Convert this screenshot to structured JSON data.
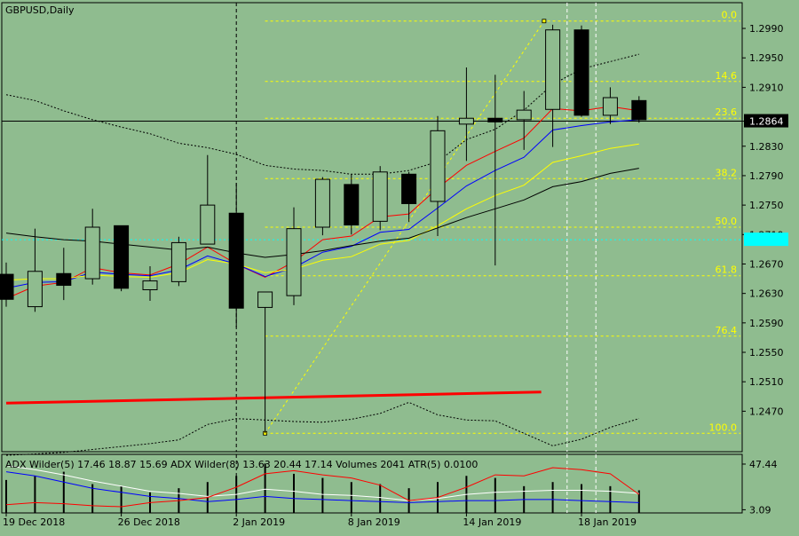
{
  "chart_data": {
    "type": "candlestick",
    "symbol_label": "GBPUSD,Daily",
    "colors": {
      "background": "#8fbc8f",
      "bull_candle": "#8fbc8f",
      "bear_candle": "#000000",
      "ma_red": "#ff0000",
      "ma_blue": "#0000ff",
      "ma_yellow": "#ffff00",
      "ma_black": "#000000",
      "fib_levels": "#ffff00",
      "cyan_label": "#00ffff",
      "adx_main": "#0000ff",
      "adx_plus": "#ffffff",
      "adx_minus": "#ff0000"
    },
    "ylim": [
      1.2415,
      1.3025
    ],
    "y_ticks": [
      "1.2990",
      "1.2950",
      "1.2910",
      "1.2864",
      "1.2830",
      "1.2790",
      "1.2750",
      "1.2710",
      "1.2670",
      "1.2630",
      "1.2590",
      "1.2550",
      "1.2510",
      "1.2470"
    ],
    "current_price": 1.2864,
    "current_price_label": "1.2864",
    "cyan_level": 1.2703,
    "x_labels": [
      {
        "index": 0,
        "label": "19 Dec 2018"
      },
      {
        "index": 4,
        "label": "26 Dec 2018"
      },
      {
        "index": 8,
        "label": "2 Jan 2019"
      },
      {
        "index": 12,
        "label": "8 Jan 2019"
      },
      {
        "index": 16,
        "label": "14 Jan 2019"
      },
      {
        "index": 20,
        "label": "18 Jan 2019"
      }
    ],
    "vlines": [
      {
        "index": 8,
        "style": "dash"
      },
      {
        "index": 19.5,
        "style": "dash-white"
      },
      {
        "index": 20.5,
        "style": "dash-white"
      }
    ],
    "candles": [
      {
        "o": 1.2656,
        "h": 1.2672,
        "l": 1.2612,
        "c": 1.2622
      },
      {
        "o": 1.2612,
        "h": 1.2718,
        "l": 1.2605,
        "c": 1.266
      },
      {
        "o": 1.2657,
        "h": 1.2692,
        "l": 1.2621,
        "c": 1.2641
      },
      {
        "o": 1.265,
        "h": 1.2745,
        "l": 1.2642,
        "c": 1.272
      },
      {
        "o": 1.2722,
        "h": 1.2722,
        "l": 1.2633,
        "c": 1.2637
      },
      {
        "o": 1.2635,
        "h": 1.2667,
        "l": 1.262,
        "c": 1.2647
      },
      {
        "o": 1.2646,
        "h": 1.2707,
        "l": 1.264,
        "c": 1.2699
      },
      {
        "o": 1.2697,
        "h": 1.2818,
        "l": 1.2697,
        "c": 1.275
      },
      {
        "o": 1.2739,
        "h": 1.278,
        "l": 1.2584,
        "c": 1.261
      },
      {
        "o": 1.2611,
        "h": 1.2632,
        "l": 1.244,
        "c": 1.2632
      },
      {
        "o": 1.2627,
        "h": 1.2747,
        "l": 1.2614,
        "c": 1.2718
      },
      {
        "o": 1.272,
        "h": 1.2788,
        "l": 1.2709,
        "c": 1.2785
      },
      {
        "o": 1.2778,
        "h": 1.2792,
        "l": 1.271,
        "c": 1.2723
      },
      {
        "o": 1.2728,
        "h": 1.2803,
        "l": 1.2716,
        "c": 1.2795
      },
      {
        "o": 1.2792,
        "h": 1.2795,
        "l": 1.2727,
        "c": 1.2752
      },
      {
        "o": 1.2755,
        "h": 1.2871,
        "l": 1.2708,
        "c": 1.2851
      },
      {
        "o": 1.286,
        "h": 1.2937,
        "l": 1.281,
        "c": 1.2868
      },
      {
        "o": 1.2868,
        "h": 1.2927,
        "l": 1.2668,
        "c": 1.2863
      },
      {
        "o": 1.2866,
        "h": 1.2905,
        "l": 1.2825,
        "c": 1.2879
      },
      {
        "o": 1.288,
        "h": 1.2995,
        "l": 1.2829,
        "c": 1.2988
      },
      {
        "o": 1.2988,
        "h": 1.2994,
        "l": 1.287,
        "c": 1.2872
      },
      {
        "o": 1.2872,
        "h": 1.291,
        "l": 1.286,
        "c": 1.2896
      },
      {
        "o": 1.2892,
        "h": 1.2898,
        "l": 1.2862,
        "c": 1.2866
      }
    ],
    "overlays": [
      {
        "name": "",
        "color": "#ff0000",
        "style": "solid",
        "values": [
          1.2623,
          1.264,
          1.2645,
          1.2665,
          1.2658,
          1.2655,
          1.267,
          1.2693,
          1.267,
          1.2652,
          1.2673,
          1.2703,
          1.2708,
          1.2734,
          1.2738,
          1.2773,
          1.2804,
          1.2823,
          1.2841,
          1.2881,
          1.2878,
          1.2884,
          1.2878
        ]
      },
      {
        "name": "",
        "color": "#0000ff",
        "style": "solid",
        "values": [
          1.2637,
          1.2645,
          1.2646,
          1.2659,
          1.2656,
          1.2654,
          1.2662,
          1.2681,
          1.267,
          1.2653,
          1.2665,
          1.2686,
          1.2694,
          1.2713,
          1.2717,
          1.2746,
          1.2776,
          1.2797,
          1.2815,
          1.2852,
          1.2858,
          1.2863,
          1.2866
        ]
      },
      {
        "name": "",
        "color": "#ffff00",
        "style": "solid",
        "values": [
          1.2648,
          1.265,
          1.265,
          1.2655,
          1.2653,
          1.2652,
          1.2658,
          1.2676,
          1.267,
          1.2658,
          1.2663,
          1.2675,
          1.268,
          1.2697,
          1.2702,
          1.2722,
          1.2745,
          1.2763,
          1.2777,
          1.2808,
          1.2817,
          1.2827,
          1.2833
        ]
      },
      {
        "name": "",
        "color": "#000000",
        "style": "solid",
        "values": [
          1.2712,
          1.2707,
          1.2703,
          1.2701,
          1.2697,
          1.2693,
          1.2689,
          1.2693,
          1.2685,
          1.2679,
          1.2683,
          1.2688,
          1.2695,
          1.2701,
          1.2705,
          1.2719,
          1.2733,
          1.2745,
          1.2757,
          1.2775,
          1.2782,
          1.2793,
          1.28
        ]
      },
      {
        "name": "",
        "color": "#000000",
        "style": "dotted",
        "values": [
          1.29,
          1.2892,
          1.2878,
          1.2866,
          1.2856,
          1.2847,
          1.2834,
          1.2828,
          1.2819,
          1.2804,
          1.2799,
          1.2797,
          1.2792,
          1.2792,
          1.2797,
          1.2809,
          1.2839,
          1.2853,
          1.2879,
          1.2914,
          1.2935,
          1.2945,
          1.2955
        ]
      },
      {
        "name": "",
        "color": "#000000",
        "style": "dotted",
        "values": [
          1.241,
          1.2412,
          1.2414,
          1.2418,
          1.2422,
          1.2426,
          1.2431,
          1.2452,
          1.246,
          1.2458,
          1.2456,
          1.2455,
          1.2459,
          1.2467,
          1.2482,
          1.2465,
          1.2458,
          1.2457,
          1.244,
          1.2423,
          1.2432,
          1.2448,
          1.246
        ]
      }
    ],
    "red_trend_line": {
      "from": {
        "index": 0,
        "value": 1.2481
      },
      "to": {
        "index": 18.6,
        "value": 1.2496
      }
    },
    "fibonacci": {
      "anchor_low": {
        "index": 9,
        "value": 1.244
      },
      "anchor_high": {
        "index": 18.7,
        "value": 1.3
      },
      "levels": [
        {
          "label": "0.0",
          "value": 1.3
        },
        {
          "label": "14.6",
          "value": 1.2918
        },
        {
          "label": "23.6",
          "value": 1.2868
        },
        {
          "label": "38.2",
          "value": 1.2786
        },
        {
          "label": "50.0",
          "value": 1.272
        },
        {
          "label": "61.8",
          "value": 1.2654
        },
        {
          "label": "76.4",
          "value": 1.2572
        },
        {
          "label": "100.0",
          "value": 1.244
        }
      ]
    },
    "indicator": {
      "label": "ADX Wilder(5) 17.46 18.87 15.69 ADX Wilder(8) 13.63 20.44 17.14 Volumes 2041 ATR(5) 0.0100",
      "ylim": [
        0,
        50
      ],
      "y_ticks": [
        "47.44",
        "3.09"
      ],
      "series": [
        {
          "name": "",
          "color": "#0000ff",
          "values": [
            40,
            36,
            30,
            24,
            20,
            16,
            14,
            11,
            13,
            16,
            14,
            13,
            12,
            11,
            10,
            11,
            12,
            12,
            13,
            13,
            12,
            11,
            10
          ]
        },
        {
          "name": "",
          "color": "#ffffff",
          "values": [
            46,
            42,
            37,
            31,
            26,
            21,
            19,
            16,
            18,
            23,
            21,
            18,
            17,
            15,
            12,
            14,
            18,
            20,
            21,
            22,
            22,
            21,
            19
          ]
        },
        {
          "name": "",
          "color": "#ff0000",
          "values": [
            8,
            10,
            9,
            7,
            6,
            10,
            12,
            15,
            25,
            38,
            41,
            37,
            34,
            27,
            12,
            15,
            25,
            37,
            36,
            44,
            42,
            38,
            18
          ]
        }
      ],
      "volumes": [
        32,
        36,
        40,
        28,
        26,
        20,
        24,
        30,
        36,
        48,
        38,
        34,
        30,
        28,
        24,
        30,
        36,
        34,
        26,
        30,
        28,
        26,
        22
      ]
    }
  }
}
